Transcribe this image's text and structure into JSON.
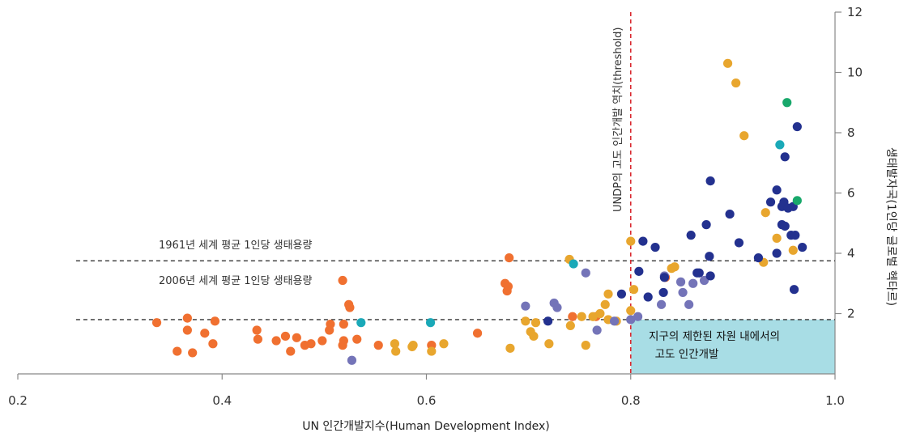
{
  "chart_data": {
    "type": "scatter",
    "xlabel": "UN 인간개발지수(Human Development Index)",
    "ylabel": "생태발자국(1인당 글로벌 헥타르)",
    "xlim": [
      0.2,
      1.0
    ],
    "ylim": [
      0,
      12
    ],
    "x_ticks": [
      "0.2",
      "0.4",
      "0.6",
      "0.8",
      "1.0"
    ],
    "y_ticks": [
      "2",
      "4",
      "6",
      "8",
      "10",
      "12"
    ],
    "x_tick_values": [
      0.2,
      0.4,
      0.6,
      0.8,
      1.0
    ],
    "y_tick_values": [
      2,
      4,
      6,
      8,
      10,
      12
    ],
    "grid": false,
    "legend": "none",
    "reference_lines": [
      {
        "label": "1961년 세계 평균 1인당 생태용량",
        "y": 3.75,
        "x_start": 0.257,
        "x_end": 1.0,
        "style": "dashed",
        "color": "#333333"
      },
      {
        "label": "2006년 세계 평균 1인당 생태용량",
        "y": 1.8,
        "x_start": 0.257,
        "x_end": 1.0,
        "style": "dashed",
        "color": "#333333"
      }
    ],
    "threshold_line": {
      "label": "UNDP의 고도 인간개발 역치(threshold)",
      "x": 0.8,
      "style": "dashed",
      "color": "#d9282f"
    },
    "zone": {
      "label_lines": [
        "지구의 제한된 자원 내에서의",
        "고도 인간개발"
      ],
      "x_range": [
        0.8,
        1.0
      ],
      "y_range": [
        0,
        1.8
      ],
      "color": "#a8dde5"
    },
    "series": [
      {
        "color": "#f07030",
        "points": [
          [
            0.336,
            1.7
          ],
          [
            0.356,
            0.75
          ],
          [
            0.366,
            1.85
          ],
          [
            0.366,
            1.45
          ],
          [
            0.371,
            0.7
          ],
          [
            0.383,
            1.35
          ],
          [
            0.391,
            1.0
          ],
          [
            0.393,
            1.75
          ],
          [
            0.434,
            1.45
          ],
          [
            0.435,
            1.15
          ],
          [
            0.453,
            1.1
          ],
          [
            0.462,
            1.25
          ],
          [
            0.467,
            0.75
          ],
          [
            0.473,
            1.2
          ],
          [
            0.481,
            0.95
          ],
          [
            0.487,
            1.0
          ],
          [
            0.498,
            1.1
          ],
          [
            0.505,
            1.45
          ],
          [
            0.506,
            1.65
          ],
          [
            0.518,
            3.1
          ],
          [
            0.518,
            0.95
          ],
          [
            0.519,
            1.1
          ],
          [
            0.519,
            1.65
          ],
          [
            0.524,
            2.3
          ],
          [
            0.525,
            2.2
          ],
          [
            0.532,
            1.15
          ],
          [
            0.553,
            0.95
          ],
          [
            0.605,
            0.95
          ],
          [
            0.65,
            1.35
          ],
          [
            0.677,
            3.0
          ],
          [
            0.679,
            2.75
          ],
          [
            0.68,
            2.9
          ],
          [
            0.681,
            3.85
          ],
          [
            0.743,
            1.9
          ],
          [
            0.766,
            1.9
          ],
          [
            0.834,
            3.2
          ]
        ]
      },
      {
        "color": "#e8a62e",
        "points": [
          [
            0.569,
            1.0
          ],
          [
            0.57,
            0.75
          ],
          [
            0.586,
            0.9
          ],
          [
            0.587,
            0.95
          ],
          [
            0.605,
            0.75
          ],
          [
            0.617,
            1.0
          ],
          [
            0.682,
            0.85
          ],
          [
            0.697,
            1.75
          ],
          [
            0.702,
            1.4
          ],
          [
            0.705,
            1.25
          ],
          [
            0.707,
            1.7
          ],
          [
            0.72,
            1.0
          ],
          [
            0.74,
            3.8
          ],
          [
            0.741,
            1.6
          ],
          [
            0.752,
            1.9
          ],
          [
            0.756,
            0.95
          ],
          [
            0.763,
            1.9
          ],
          [
            0.77,
            2.0
          ],
          [
            0.775,
            2.3
          ],
          [
            0.778,
            1.8
          ],
          [
            0.778,
            2.65
          ],
          [
            0.786,
            1.75
          ],
          [
            0.8,
            4.4
          ],
          [
            0.8,
            2.1
          ],
          [
            0.803,
            2.8
          ],
          [
            0.84,
            3.5
          ],
          [
            0.843,
            3.55
          ],
          [
            0.895,
            10.3
          ],
          [
            0.903,
            9.65
          ],
          [
            0.911,
            7.9
          ],
          [
            0.93,
            3.7
          ],
          [
            0.932,
            5.35
          ],
          [
            0.943,
            4.5
          ],
          [
            0.959,
            4.1
          ]
        ]
      },
      {
        "color": "#7474b8",
        "points": [
          [
            0.527,
            0.45
          ],
          [
            0.697,
            2.25
          ],
          [
            0.725,
            2.35
          ],
          [
            0.728,
            2.2
          ],
          [
            0.756,
            3.35
          ],
          [
            0.767,
            1.45
          ],
          [
            0.784,
            1.75
          ],
          [
            0.8,
            1.8
          ],
          [
            0.807,
            1.9
          ],
          [
            0.83,
            2.3
          ],
          [
            0.833,
            3.25
          ],
          [
            0.849,
            3.05
          ],
          [
            0.851,
            2.7
          ],
          [
            0.857,
            2.3
          ],
          [
            0.861,
            3.0
          ],
          [
            0.872,
            3.1
          ]
        ]
      },
      {
        "color": "#23318f",
        "points": [
          [
            0.719,
            1.75
          ],
          [
            0.791,
            2.65
          ],
          [
            0.808,
            3.4
          ],
          [
            0.812,
            4.4
          ],
          [
            0.817,
            2.55
          ],
          [
            0.824,
            4.2
          ],
          [
            0.832,
            2.7
          ],
          [
            0.833,
            3.2
          ],
          [
            0.859,
            4.6
          ],
          [
            0.865,
            3.35
          ],
          [
            0.867,
            3.35
          ],
          [
            0.874,
            4.95
          ],
          [
            0.877,
            3.9
          ],
          [
            0.878,
            3.25
          ],
          [
            0.878,
            6.4
          ],
          [
            0.897,
            5.3
          ],
          [
            0.906,
            4.35
          ],
          [
            0.925,
            3.85
          ],
          [
            0.937,
            5.7
          ],
          [
            0.943,
            6.1
          ],
          [
            0.943,
            4.0
          ],
          [
            0.948,
            5.55
          ],
          [
            0.948,
            4.95
          ],
          [
            0.95,
            5.7
          ],
          [
            0.951,
            4.9
          ],
          [
            0.951,
            7.2
          ],
          [
            0.954,
            5.5
          ],
          [
            0.957,
            4.6
          ],
          [
            0.959,
            5.55
          ],
          [
            0.96,
            2.8
          ],
          [
            0.961,
            4.6
          ],
          [
            0.963,
            8.2
          ],
          [
            0.968,
            4.2
          ]
        ]
      },
      {
        "color": "#1aa9b8",
        "points": [
          [
            0.536,
            1.7
          ],
          [
            0.604,
            1.7
          ],
          [
            0.744,
            3.65
          ],
          [
            0.946,
            7.6
          ]
        ]
      },
      {
        "color": "#18a86b",
        "points": [
          [
            0.953,
            9.0
          ],
          [
            0.963,
            5.75
          ]
        ]
      }
    ]
  }
}
